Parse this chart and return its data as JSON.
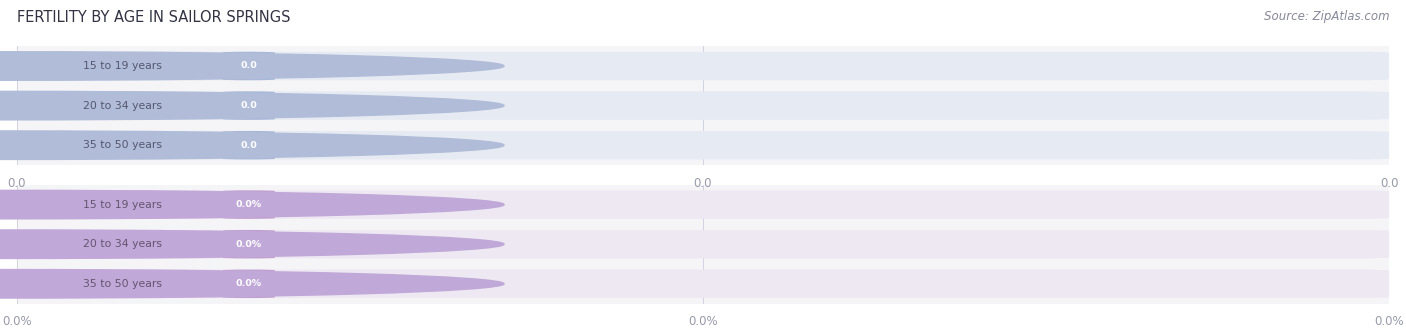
{
  "title": "FERTILITY BY AGE IN SAILOR SPRINGS",
  "source": "Source: ZipAtlas.com",
  "top_section": {
    "labels": [
      "15 to 19 years",
      "20 to 34 years",
      "35 to 50 years"
    ],
    "values": [
      0.0,
      0.0,
      0.0
    ],
    "bar_bg_color": "#e6eaf2",
    "label_bg_color": "#dde2ee",
    "value_bg_color": "#a8b8d8",
    "label_text_color": "#555870",
    "value_text_color": "#ffffff",
    "tick_labels": [
      "0.0",
      "0.0",
      "0.0"
    ],
    "circle_color": "#b0bcd8"
  },
  "bottom_section": {
    "labels": [
      "15 to 19 years",
      "20 to 34 years",
      "35 to 50 years"
    ],
    "values": [
      0.0,
      0.0,
      0.0
    ],
    "bar_bg_color": "#ede8f2",
    "label_bg_color": "#e8d8ec",
    "value_bg_color": "#c0a0d0",
    "label_text_color": "#665570",
    "value_text_color": "#ffffff",
    "tick_labels": [
      "0.0%",
      "0.0%",
      "0.0%"
    ],
    "circle_color": "#c0a8d8"
  },
  "title_color": "#333344",
  "source_color": "#888899",
  "title_fontsize": 10.5,
  "source_fontsize": 8.5,
  "tick_color": "#999aaa",
  "tick_fontsize": 8.5
}
